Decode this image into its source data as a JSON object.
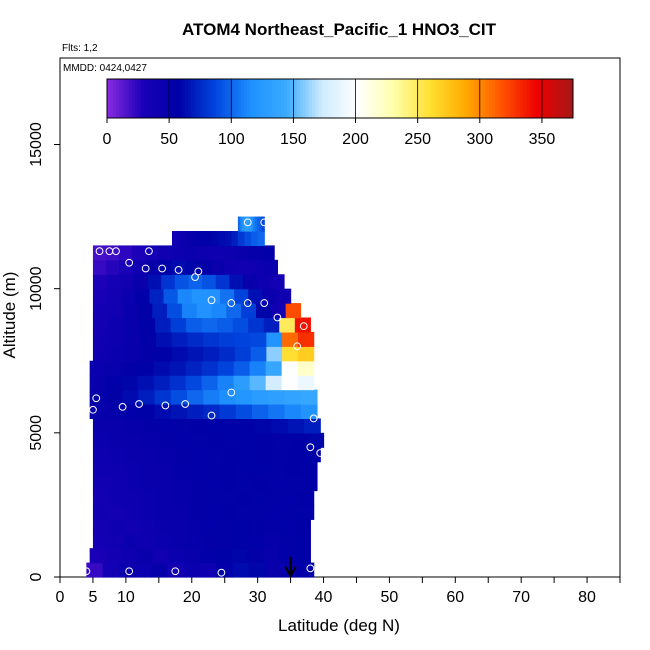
{
  "chart_data": {
    "type": "heatmap",
    "title": "ATOM4 Northeast_Pacific_1 HNO3_CIT",
    "flights_label": "Flts: 1,2",
    "dates_label": "MMDD: 0424,0427",
    "xlabel": "Latitude (deg N)",
    "ylabel": "Altitude (m)",
    "xlim": [
      0,
      85
    ],
    "ylim": [
      0,
      18000
    ],
    "x_ticks": [
      0,
      5,
      10,
      20,
      30,
      40,
      50,
      60,
      70,
      80
    ],
    "x_tick_labels": [
      "0",
      "5",
      "10",
      "20",
      "30",
      "40",
      "50",
      "60",
      "70",
      "80"
    ],
    "x_minor_ticks": [
      15,
      25,
      35,
      45,
      55,
      65,
      75,
      85
    ],
    "y_ticks": [
      0,
      5000,
      10000,
      15000
    ],
    "y_tick_labels": [
      "0",
      "5000",
      "10000",
      "15000"
    ],
    "colorbar": {
      "min": 0,
      "max": 375,
      "ticks": [
        0,
        50,
        100,
        150,
        200,
        250,
        300,
        350
      ],
      "tick_labels": [
        "0",
        "50",
        "100",
        "150",
        "200",
        "250",
        "300",
        "350"
      ]
    },
    "colorscale": [
      "#8a2be2",
      "#1a00b8",
      "#0000a6",
      "#0044dd",
      "#1e90ff",
      "#3aaaff",
      "#d0ecff",
      "#ffffff",
      "#ffffaa",
      "#ffe033",
      "#ffaa00",
      "#ff5500",
      "#ee0000",
      "#a51818"
    ],
    "altitude_bins": [
      {
        "y": 0,
        "x": [
          4,
          38.5
        ],
        "v": [
          22,
          35,
          45,
          45,
          52,
          38,
          45,
          42,
          55,
          62,
          60,
          48,
          52,
          55
        ]
      },
      {
        "y": 500,
        "x": [
          4.5,
          38
        ],
        "v": [
          30,
          38,
          42,
          48,
          40,
          46,
          50,
          55,
          58,
          60,
          54,
          50,
          55,
          58
        ]
      },
      {
        "y": 1000,
        "x": [
          5,
          38
        ],
        "v": [
          35,
          40,
          45,
          42,
          46,
          50,
          52,
          54,
          56,
          58,
          55,
          52,
          56,
          58
        ]
      },
      {
        "y": 1500,
        "x": [
          5,
          38
        ],
        "v": [
          38,
          42,
          40,
          44,
          48,
          50,
          52,
          55,
          56,
          58,
          57,
          54,
          55,
          57
        ]
      },
      {
        "y": 2000,
        "x": [
          5,
          38.5
        ],
        "v": [
          40,
          38,
          42,
          46,
          48,
          50,
          54,
          55,
          57,
          58,
          56,
          55,
          56,
          58
        ]
      },
      {
        "y": 2500,
        "x": [
          5,
          38.5
        ],
        "v": [
          38,
          42,
          44,
          46,
          50,
          52,
          54,
          56,
          56,
          57,
          58,
          56,
          55,
          57
        ]
      },
      {
        "y": 3000,
        "x": [
          5,
          39
        ],
        "v": [
          40,
          42,
          46,
          48,
          50,
          52,
          54,
          55,
          57,
          58,
          57,
          55,
          56,
          58
        ]
      },
      {
        "y": 3500,
        "x": [
          5,
          39
        ],
        "v": [
          42,
          44,
          46,
          48,
          50,
          53,
          55,
          56,
          57,
          58,
          58,
          56,
          57,
          58
        ]
      },
      {
        "y": 4000,
        "x": [
          5,
          39.5
        ],
        "v": [
          44,
          46,
          48,
          50,
          52,
          54,
          55,
          56,
          57,
          58,
          57,
          56,
          57,
          58
        ]
      },
      {
        "y": 4500,
        "x": [
          5,
          40
        ],
        "v": [
          46,
          48,
          50,
          52,
          54,
          55,
          56,
          57,
          58,
          58,
          57,
          56,
          57,
          60
        ]
      },
      {
        "y": 5000,
        "x": [
          5,
          39.5
        ],
        "v": [
          48,
          50,
          52,
          54,
          55,
          56,
          57,
          58,
          58,
          58,
          60,
          62,
          66,
          70
        ]
      },
      {
        "y": 5500,
        "x": [
          4.5,
          39
        ],
        "v": [
          50,
          52,
          55,
          58,
          62,
          66,
          70,
          75,
          82,
          90,
          98,
          105,
          112,
          120
        ]
      },
      {
        "y": 6000,
        "x": [
          4.5,
          39
        ],
        "v": [
          52,
          56,
          62,
          70,
          80,
          90,
          100,
          108,
          115,
          122,
          128,
          132,
          136,
          140
        ]
      },
      {
        "y": 6500,
        "x": [
          4.5,
          38.5
        ],
        "v": [
          50,
          55,
          60,
          64,
          70,
          78,
          88,
          98,
          110,
          130,
          150,
          175,
          200,
          190
        ]
      },
      {
        "y": 7000,
        "x": [
          4.5,
          38.5
        ],
        "v": [
          45,
          50,
          54,
          58,
          62,
          66,
          72,
          78,
          86,
          96,
          110,
          140,
          200,
          220
        ]
      },
      {
        "y": 7500,
        "x": [
          5,
          38.5
        ],
        "v": [
          42,
          46,
          50,
          54,
          58,
          62,
          66,
          70,
          76,
          84,
          96,
          160,
          260,
          270
        ]
      },
      {
        "y": 8000,
        "x": [
          5,
          38.5
        ],
        "v": [
          40,
          44,
          50,
          56,
          64,
          70,
          76,
          80,
          84,
          86,
          88,
          120,
          310,
          330
        ]
      },
      {
        "y": 8500,
        "x": [
          5,
          38
        ],
        "v": [
          38,
          44,
          50,
          58,
          70,
          84,
          96,
          100,
          96,
          90,
          80,
          70,
          250,
          340
        ]
      },
      {
        "y": 9000,
        "x": [
          5,
          36.5
        ],
        "v": [
          35,
          40,
          48,
          56,
          70,
          90,
          110,
          118,
          112,
          100,
          84,
          60,
          40,
          320
        ]
      },
      {
        "y": 9500,
        "x": [
          5,
          35
        ],
        "v": [
          32,
          38,
          45,
          55,
          72,
          94,
          112,
          120,
          118,
          104,
          86,
          64,
          45,
          40
        ]
      },
      {
        "y": 10000,
        "x": [
          5,
          34
        ],
        "v": [
          28,
          34,
          40,
          50,
          64,
          80,
          92,
          98,
          92,
          80,
          64,
          50,
          42,
          38
        ]
      },
      {
        "y": 10500,
        "x": [
          5,
          33
        ],
        "v": [
          22,
          26,
          32,
          40,
          50,
          58,
          62,
          60,
          54,
          48,
          42,
          40,
          42,
          45
        ]
      },
      {
        "y": 11000,
        "x": [
          5,
          32.5
        ],
        "v": [
          18,
          20,
          24,
          28,
          34,
          40,
          44,
          46,
          44,
          42,
          44,
          48,
          52,
          55
        ]
      },
      {
        "y": 11500,
        "x": [
          17,
          31
        ],
        "v": [
          40,
          44,
          48,
          52,
          55,
          58,
          60,
          62,
          64,
          70,
          82,
          90,
          96,
          100
        ]
      },
      {
        "y": 12000,
        "x": [
          27,
          31
        ],
        "v": [
          100,
          110,
          120,
          128,
          132,
          130,
          126,
          118,
          110,
          104,
          100,
          96,
          92,
          88
        ]
      }
    ],
    "observation_points": [
      {
        "lat": 4,
        "alt": 200
      },
      {
        "lat": 10.5,
        "alt": 200
      },
      {
        "lat": 17.5,
        "alt": 200
      },
      {
        "lat": 24.5,
        "alt": 150
      },
      {
        "lat": 38,
        "alt": 300
      },
      {
        "lat": 5,
        "alt": 5800
      },
      {
        "lat": 5.5,
        "alt": 6200
      },
      {
        "lat": 9.5,
        "alt": 5900
      },
      {
        "lat": 12,
        "alt": 6000
      },
      {
        "lat": 16,
        "alt": 5950
      },
      {
        "lat": 19,
        "alt": 6000
      },
      {
        "lat": 23,
        "alt": 5600
      },
      {
        "lat": 26,
        "alt": 6400
      },
      {
        "lat": 38.5,
        "alt": 5500
      },
      {
        "lat": 38,
        "alt": 4500
      },
      {
        "lat": 39.5,
        "alt": 4300
      },
      {
        "lat": 6,
        "alt": 11300
      },
      {
        "lat": 7.5,
        "alt": 11300
      },
      {
        "lat": 8.5,
        "alt": 11300
      },
      {
        "lat": 10.5,
        "alt": 10900
      },
      {
        "lat": 13.5,
        "alt": 11300
      },
      {
        "lat": 13,
        "alt": 10700
      },
      {
        "lat": 15.5,
        "alt": 10700
      },
      {
        "lat": 18,
        "alt": 10650
      },
      {
        "lat": 21,
        "alt": 10600
      },
      {
        "lat": 20.5,
        "alt": 10400
      },
      {
        "lat": 23,
        "alt": 9600
      },
      {
        "lat": 26,
        "alt": 9500
      },
      {
        "lat": 28.5,
        "alt": 9500
      },
      {
        "lat": 31,
        "alt": 9500
      },
      {
        "lat": 33,
        "alt": 9000
      },
      {
        "lat": 37,
        "alt": 8700
      },
      {
        "lat": 36,
        "alt": 8000
      },
      {
        "lat": 28.5,
        "alt": 12300
      },
      {
        "lat": 31,
        "alt": 12300
      }
    ],
    "marker_arrow": {
      "lat": 35,
      "alt_from": 700,
      "alt_to": 0
    }
  }
}
